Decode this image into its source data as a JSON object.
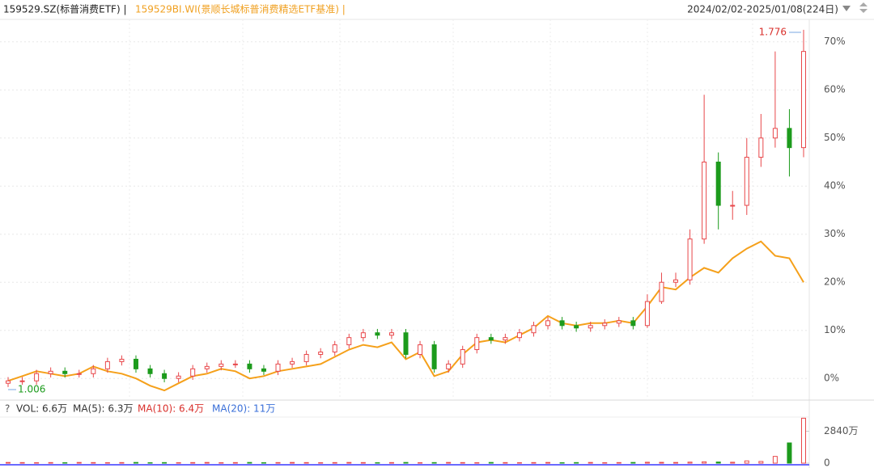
{
  "chart_data": {
    "type": "candlestick",
    "title": "159529.SZ(标普消费ETF) |",
    "subtitle": "159529BI.WI(景顺长城标普消费精选ETF基准) |",
    "date_range": "2024/02/02-2025/01/08(224日)",
    "ylim": [
      -4.5,
      75
    ],
    "yticks": [
      {
        "value": 0,
        "label": "0%"
      },
      {
        "value": 10,
        "label": "10%"
      },
      {
        "value": 20,
        "label": "20%"
      },
      {
        "value": 30,
        "label": "30%"
      },
      {
        "value": 40,
        "label": "40%"
      },
      {
        "value": 50,
        "label": "50%"
      },
      {
        "value": 60,
        "label": "60%"
      },
      {
        "value": 70,
        "label": "70%"
      }
    ],
    "grid": true,
    "up_color": "#e8474a",
    "down_color": "#1c9b1c",
    "candles": {
      "name": "159529.SZ",
      "open": [
        -1.0,
        -0.5,
        -0.5,
        1.0,
        1.5,
        1.0,
        1.0,
        2.0,
        3.5,
        4.0,
        2.0,
        1.0,
        0.0,
        0.5,
        2.0,
        2.5,
        3.0,
        3.0,
        2.0,
        1.5,
        3.0,
        3.5,
        5.0,
        5.5,
        7.0,
        8.5,
        9.5,
        9.0,
        9.5,
        5.0,
        7.0,
        2.0,
        3.0,
        6.0,
        8.5,
        8.0,
        8.5,
        9.5,
        11.0,
        12.0,
        11.0,
        10.5,
        11.0,
        11.5,
        12.0,
        11.0,
        16.0,
        20.0,
        20.5,
        29.0,
        45.0,
        36.0,
        36.0,
        46.0,
        50.0,
        52.0,
        48.0
      ],
      "high": [
        0.3,
        0.3,
        1.8,
        2.3,
        2.3,
        1.8,
        2.8,
        4.3,
        4.8,
        4.8,
        2.8,
        1.8,
        1.3,
        2.8,
        3.3,
        3.8,
        3.8,
        3.8,
        2.8,
        3.8,
        4.3,
        5.8,
        6.3,
        7.8,
        9.3,
        10.3,
        10.3,
        10.3,
        10.3,
        7.8,
        7.8,
        3.8,
        6.8,
        9.3,
        9.3,
        9.3,
        10.3,
        11.8,
        12.8,
        12.8,
        11.8,
        11.8,
        12.3,
        12.8,
        12.8,
        17.5,
        22,
        22,
        31,
        59,
        47,
        39,
        50,
        55,
        68,
        56,
        72.5
      ],
      "low": [
        -1.8,
        -1.3,
        -1.3,
        0.2,
        0.2,
        0.2,
        0.2,
        1.2,
        2.7,
        1.2,
        0.2,
        -0.8,
        -0.8,
        -0.3,
        1.2,
        1.7,
        2.2,
        1.2,
        0.7,
        0.7,
        2.2,
        2.7,
        4.2,
        4.7,
        6.2,
        7.7,
        8.2,
        8.2,
        4.2,
        4.2,
        1.2,
        1.2,
        2.2,
        5.2,
        7.2,
        7.2,
        7.7,
        8.7,
        10.2,
        10.2,
        9.7,
        9.7,
        10.2,
        10.7,
        10.2,
        10.5,
        15.5,
        19,
        19.5,
        28,
        31,
        33,
        34,
        44,
        48,
        42,
        46
      ],
      "close": [
        -0.5,
        -0.5,
        1.0,
        1.5,
        1.0,
        1.0,
        2.0,
        3.5,
        4.0,
        2.0,
        1.0,
        0.0,
        0.5,
        2.0,
        2.5,
        3.0,
        3.0,
        2.0,
        1.5,
        3.0,
        3.5,
        5.0,
        5.5,
        7.0,
        8.5,
        9.5,
        9.0,
        9.5,
        5.0,
        7.0,
        2.0,
        3.0,
        6.0,
        8.5,
        8.0,
        8.5,
        9.5,
        11.0,
        12.0,
        11.0,
        10.5,
        11.0,
        11.5,
        12.0,
        11.0,
        16.0,
        20.0,
        20.5,
        29.0,
        45.0,
        36.0,
        36.0,
        46.0,
        50.0,
        52.0,
        48.0,
        68.0
      ]
    },
    "benchmark": {
      "name": "159529BI.WI",
      "color": "#f5a01a",
      "values": [
        -0.5,
        0.5,
        1.5,
        1.0,
        0.5,
        1.0,
        2.5,
        1.5,
        1.0,
        0.0,
        -1.5,
        -2.5,
        -1.0,
        0.5,
        1.0,
        2.0,
        1.5,
        0.0,
        0.5,
        1.5,
        2.0,
        2.5,
        3.0,
        4.5,
        6.0,
        7.0,
        6.5,
        7.5,
        4.0,
        5.5,
        0.5,
        1.5,
        5.0,
        7.5,
        8.0,
        7.5,
        9.0,
        10.5,
        13.0,
        11.5,
        11.0,
        11.5,
        11.5,
        12.0,
        11.5,
        15.0,
        19.0,
        18.5,
        21.0,
        23.0,
        22.0,
        25.0,
        27.0,
        28.5,
        25.5,
        25.0,
        20.0
      ]
    },
    "annotations": [
      {
        "text": "1.776",
        "color": "#d9302c"
      },
      {
        "text": "1.006",
        "color": "#1c9b1c"
      }
    ],
    "volume": {
      "legend": [
        {
          "text": "?",
          "color": "#555555"
        },
        {
          "text": "VOL: 6.6万",
          "color": "#333333"
        },
        {
          "text": "MA(5): 6.3万",
          "color": "#333333"
        },
        {
          "text": "MA(10): 6.4万",
          "color": "#d9302c"
        },
        {
          "text": "MA(20): 11万",
          "color": "#3a6fd8"
        }
      ],
      "ylim": [
        0,
        4100
      ],
      "yticks": [
        0,
        {
          "value": 2840,
          "label": "2840万"
        }
      ],
      "values": [
        60,
        50,
        40,
        50,
        40,
        60,
        50,
        40,
        50,
        60,
        40,
        50,
        40,
        50,
        60,
        40,
        50,
        60,
        40,
        50,
        60,
        50,
        40,
        50,
        60,
        50,
        40,
        50,
        60,
        40,
        50,
        60,
        50,
        40,
        60,
        50,
        40,
        50,
        60,
        40,
        50,
        60,
        40,
        50,
        60,
        80,
        70,
        60,
        90,
        120,
        100,
        80,
        200,
        150,
        600,
        1800,
        4000
      ]
    }
  }
}
